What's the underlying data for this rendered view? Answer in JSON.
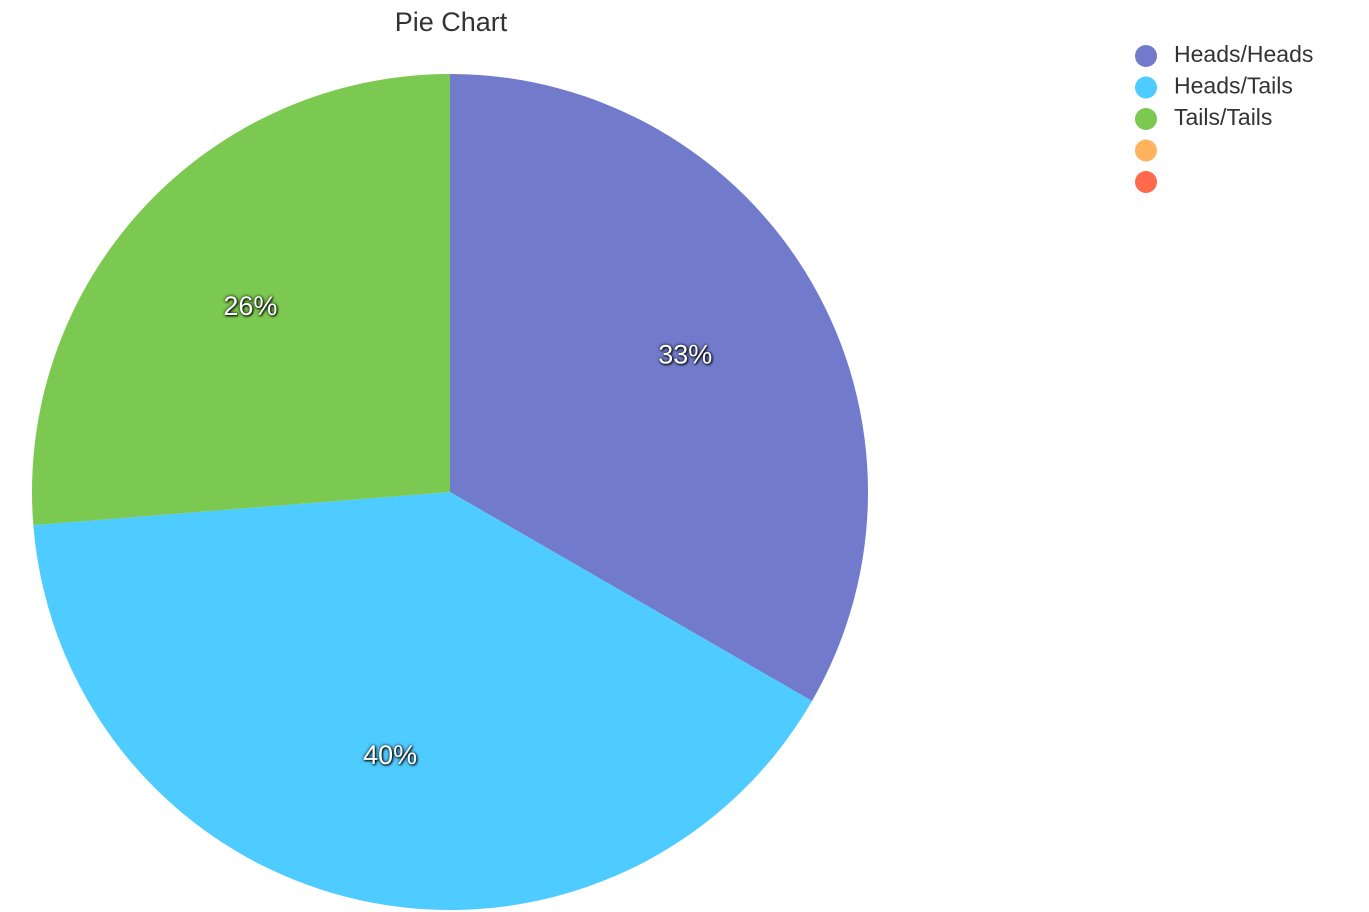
{
  "chart_data": {
    "type": "pie",
    "title": "Pie Chart",
    "categories": [
      "Heads/Heads",
      "Heads/Tails",
      "Tails/Tails",
      null,
      null
    ],
    "values": [
      33,
      40,
      26,
      0,
      0
    ],
    "value_labels": [
      "33%",
      "40%",
      "26%",
      null,
      null
    ],
    "colors": [
      "#727bcb",
      "#4ecbff",
      "#7bc950",
      "#ffb35e",
      "#ff6a4d"
    ],
    "legend": "top-right"
  }
}
